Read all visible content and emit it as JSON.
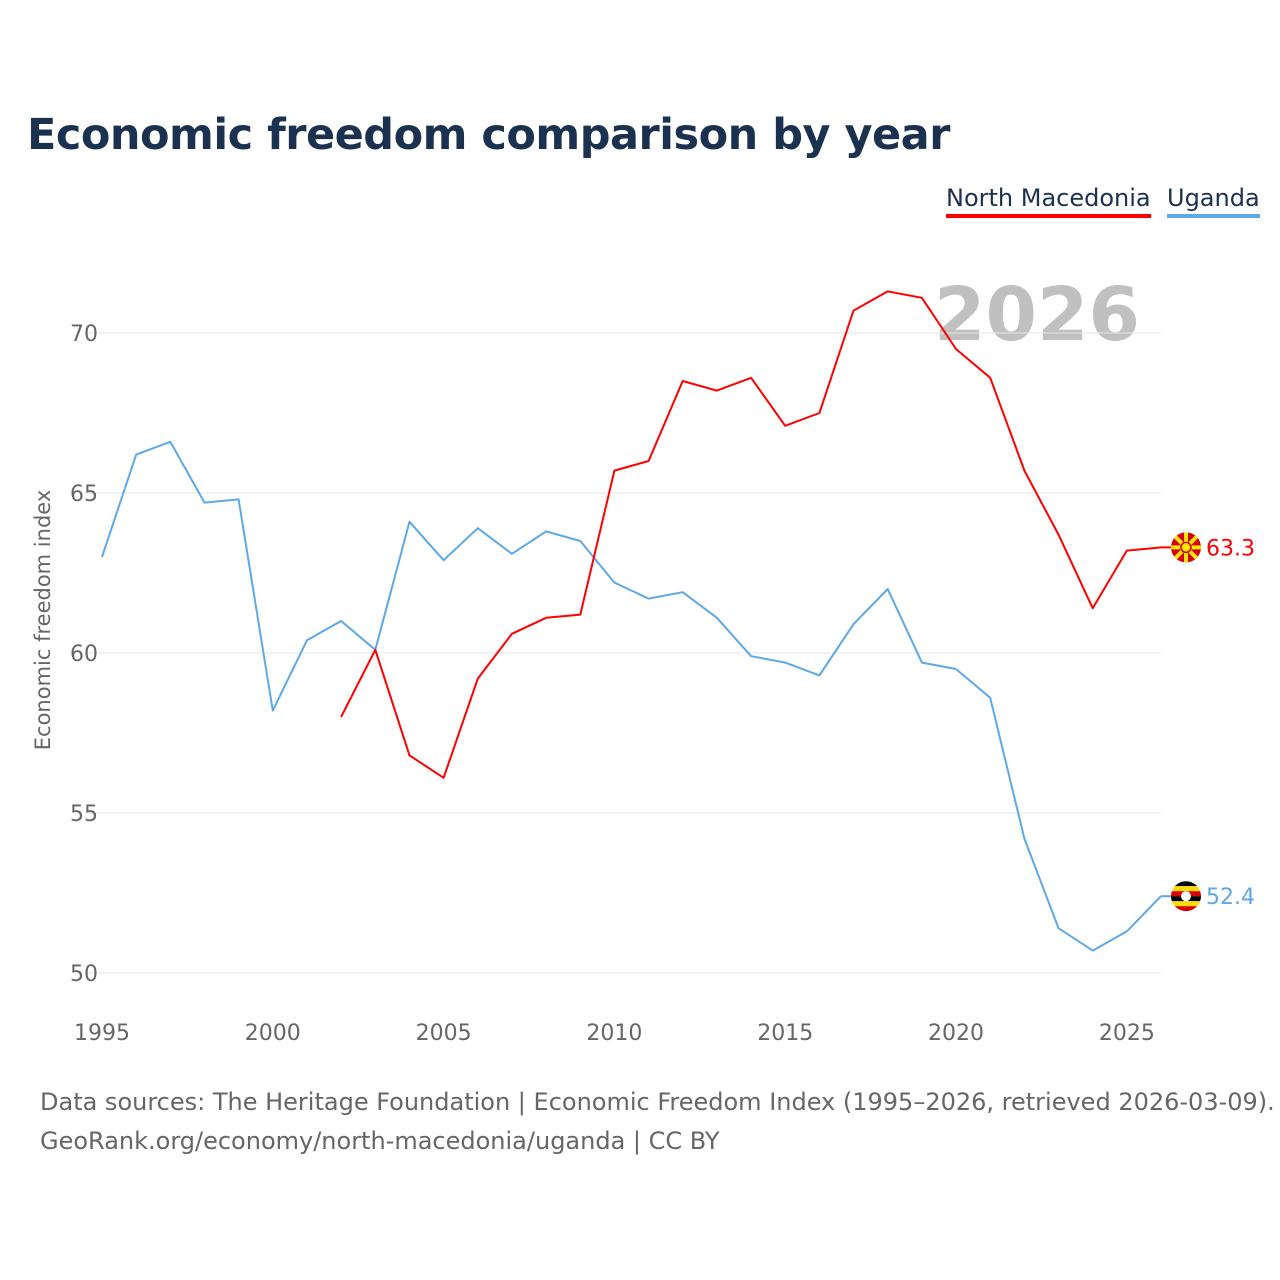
{
  "title": "Economic freedom comparison by year",
  "source_line1": "Data sources: The Heritage Foundation | Economic Freedom Index (1995–2026, retrieved 2026-03-09).",
  "source_line2": "GeoRank.org/economy/north-macedonia/uganda | CC BY",
  "chart_data": {
    "type": "line",
    "title": "Economic freedom comparison by year",
    "xlabel": "",
    "ylabel": "Economic freedom index",
    "xlim": [
      1995,
      2026
    ],
    "ylim": [
      50,
      72
    ],
    "xticks": [
      1995,
      2000,
      2005,
      2010,
      2015,
      2020,
      2025
    ],
    "yticks": [
      50,
      55,
      60,
      65,
      70
    ],
    "grid": true,
    "legend_position": "top-right",
    "watermark_year": "2026",
    "series": [
      {
        "name": "North Macedonia",
        "color": "#ff0000",
        "flag": "north-macedonia-flag",
        "end_label": "63.3",
        "x": [
          2002,
          2003,
          2004,
          2005,
          2006,
          2007,
          2008,
          2009,
          2010,
          2011,
          2012,
          2013,
          2014,
          2015,
          2016,
          2017,
          2018,
          2019,
          2020,
          2021,
          2022,
          2023,
          2024,
          2025,
          2026
        ],
        "values": [
          58.0,
          60.1,
          56.8,
          56.1,
          59.2,
          60.6,
          61.1,
          61.2,
          65.7,
          66.0,
          68.5,
          68.2,
          68.6,
          67.1,
          67.5,
          70.7,
          71.3,
          71.1,
          69.5,
          68.6,
          65.7,
          63.7,
          61.4,
          63.2,
          63.3
        ]
      },
      {
        "name": "Uganda",
        "color": "#5ca8e8",
        "flag": "uganda-flag",
        "end_label": "52.4",
        "x": [
          1995,
          1996,
          1997,
          1998,
          1999,
          2000,
          2001,
          2002,
          2003,
          2004,
          2005,
          2006,
          2007,
          2008,
          2009,
          2010,
          2011,
          2012,
          2013,
          2014,
          2015,
          2016,
          2017,
          2018,
          2019,
          2020,
          2021,
          2022,
          2023,
          2024,
          2025,
          2026
        ],
        "values": [
          63.0,
          66.2,
          66.6,
          64.7,
          64.8,
          58.2,
          60.4,
          61.0,
          60.1,
          64.1,
          62.9,
          63.9,
          63.1,
          63.8,
          63.5,
          62.2,
          61.7,
          61.9,
          61.1,
          59.9,
          59.7,
          59.3,
          60.9,
          62.0,
          59.7,
          59.5,
          58.6,
          54.2,
          51.4,
          50.7,
          51.3,
          52.4
        ]
      }
    ]
  }
}
